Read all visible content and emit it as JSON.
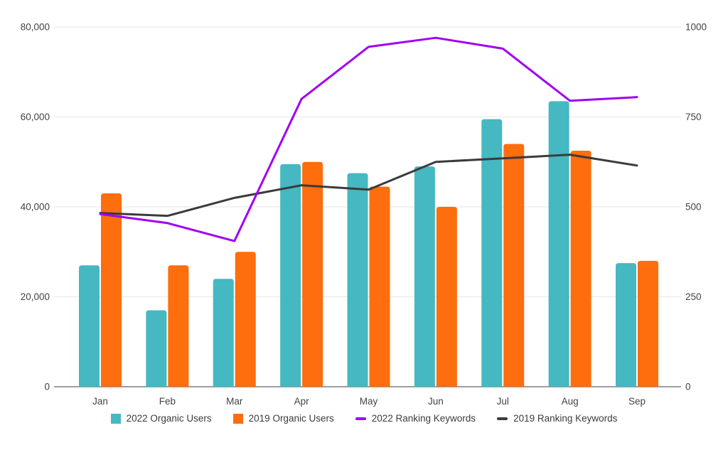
{
  "chart_data": {
    "type": "combo-bar-line",
    "title": "",
    "categories": [
      "Jan",
      "Feb",
      "Mar",
      "Apr",
      "May",
      "Jun",
      "Jul",
      "Aug",
      "Sep"
    ],
    "series": [
      {
        "name": "2022 Organic Users",
        "kind": "bar",
        "axis": "left",
        "color": "#45b8c1",
        "values": [
          27000,
          17000,
          24000,
          49500,
          47500,
          49000,
          59500,
          63500,
          27500
        ]
      },
      {
        "name": "2019 Organic Users",
        "kind": "bar",
        "axis": "left",
        "color": "#fe6d0e",
        "values": [
          43000,
          27000,
          30000,
          50000,
          44500,
          40000,
          54000,
          52500,
          28000
        ]
      },
      {
        "name": "2022 Ranking Keywords",
        "kind": "line",
        "axis": "right",
        "color": "#a100f2",
        "values": [
          480,
          455,
          405,
          800,
          945,
          970,
          940,
          795,
          805
        ]
      },
      {
        "name": "2019 Ranking Keywords",
        "kind": "line",
        "axis": "right",
        "color": "#3b3b3b",
        "values": [
          483,
          475,
          525,
          560,
          548,
          625,
          635,
          645,
          615
        ]
      }
    ],
    "left_axis": {
      "min": 0,
      "max": 80000,
      "tick_values": [
        0,
        20000,
        40000,
        60000,
        80000
      ],
      "tick_labels": [
        "0",
        "20,000",
        "40,000",
        "60,000",
        "80,000"
      ]
    },
    "right_axis": {
      "min": 0,
      "max": 1000,
      "tick_values": [
        0,
        250,
        500,
        750,
        1000
      ],
      "tick_labels": [
        "0",
        "250",
        "500",
        "750",
        "1000"
      ]
    },
    "grid": true,
    "legend_position": "bottom",
    "legend": [
      {
        "label": "2022 Organic Users",
        "marker": "square",
        "color": "#45b8c1"
      },
      {
        "label": "2019 Organic Users",
        "marker": "square",
        "color": "#fe6d0e"
      },
      {
        "label": "2022 Ranking Keywords",
        "marker": "dash",
        "color": "#a100f2"
      },
      {
        "label": "2019 Ranking Keywords",
        "marker": "dash",
        "color": "#3b3b3b"
      }
    ],
    "colors": {
      "gridline": "#e6e6e6",
      "axis_line": "#9e9e9e",
      "axis_text": "#444444",
      "background": "#ffffff"
    }
  }
}
